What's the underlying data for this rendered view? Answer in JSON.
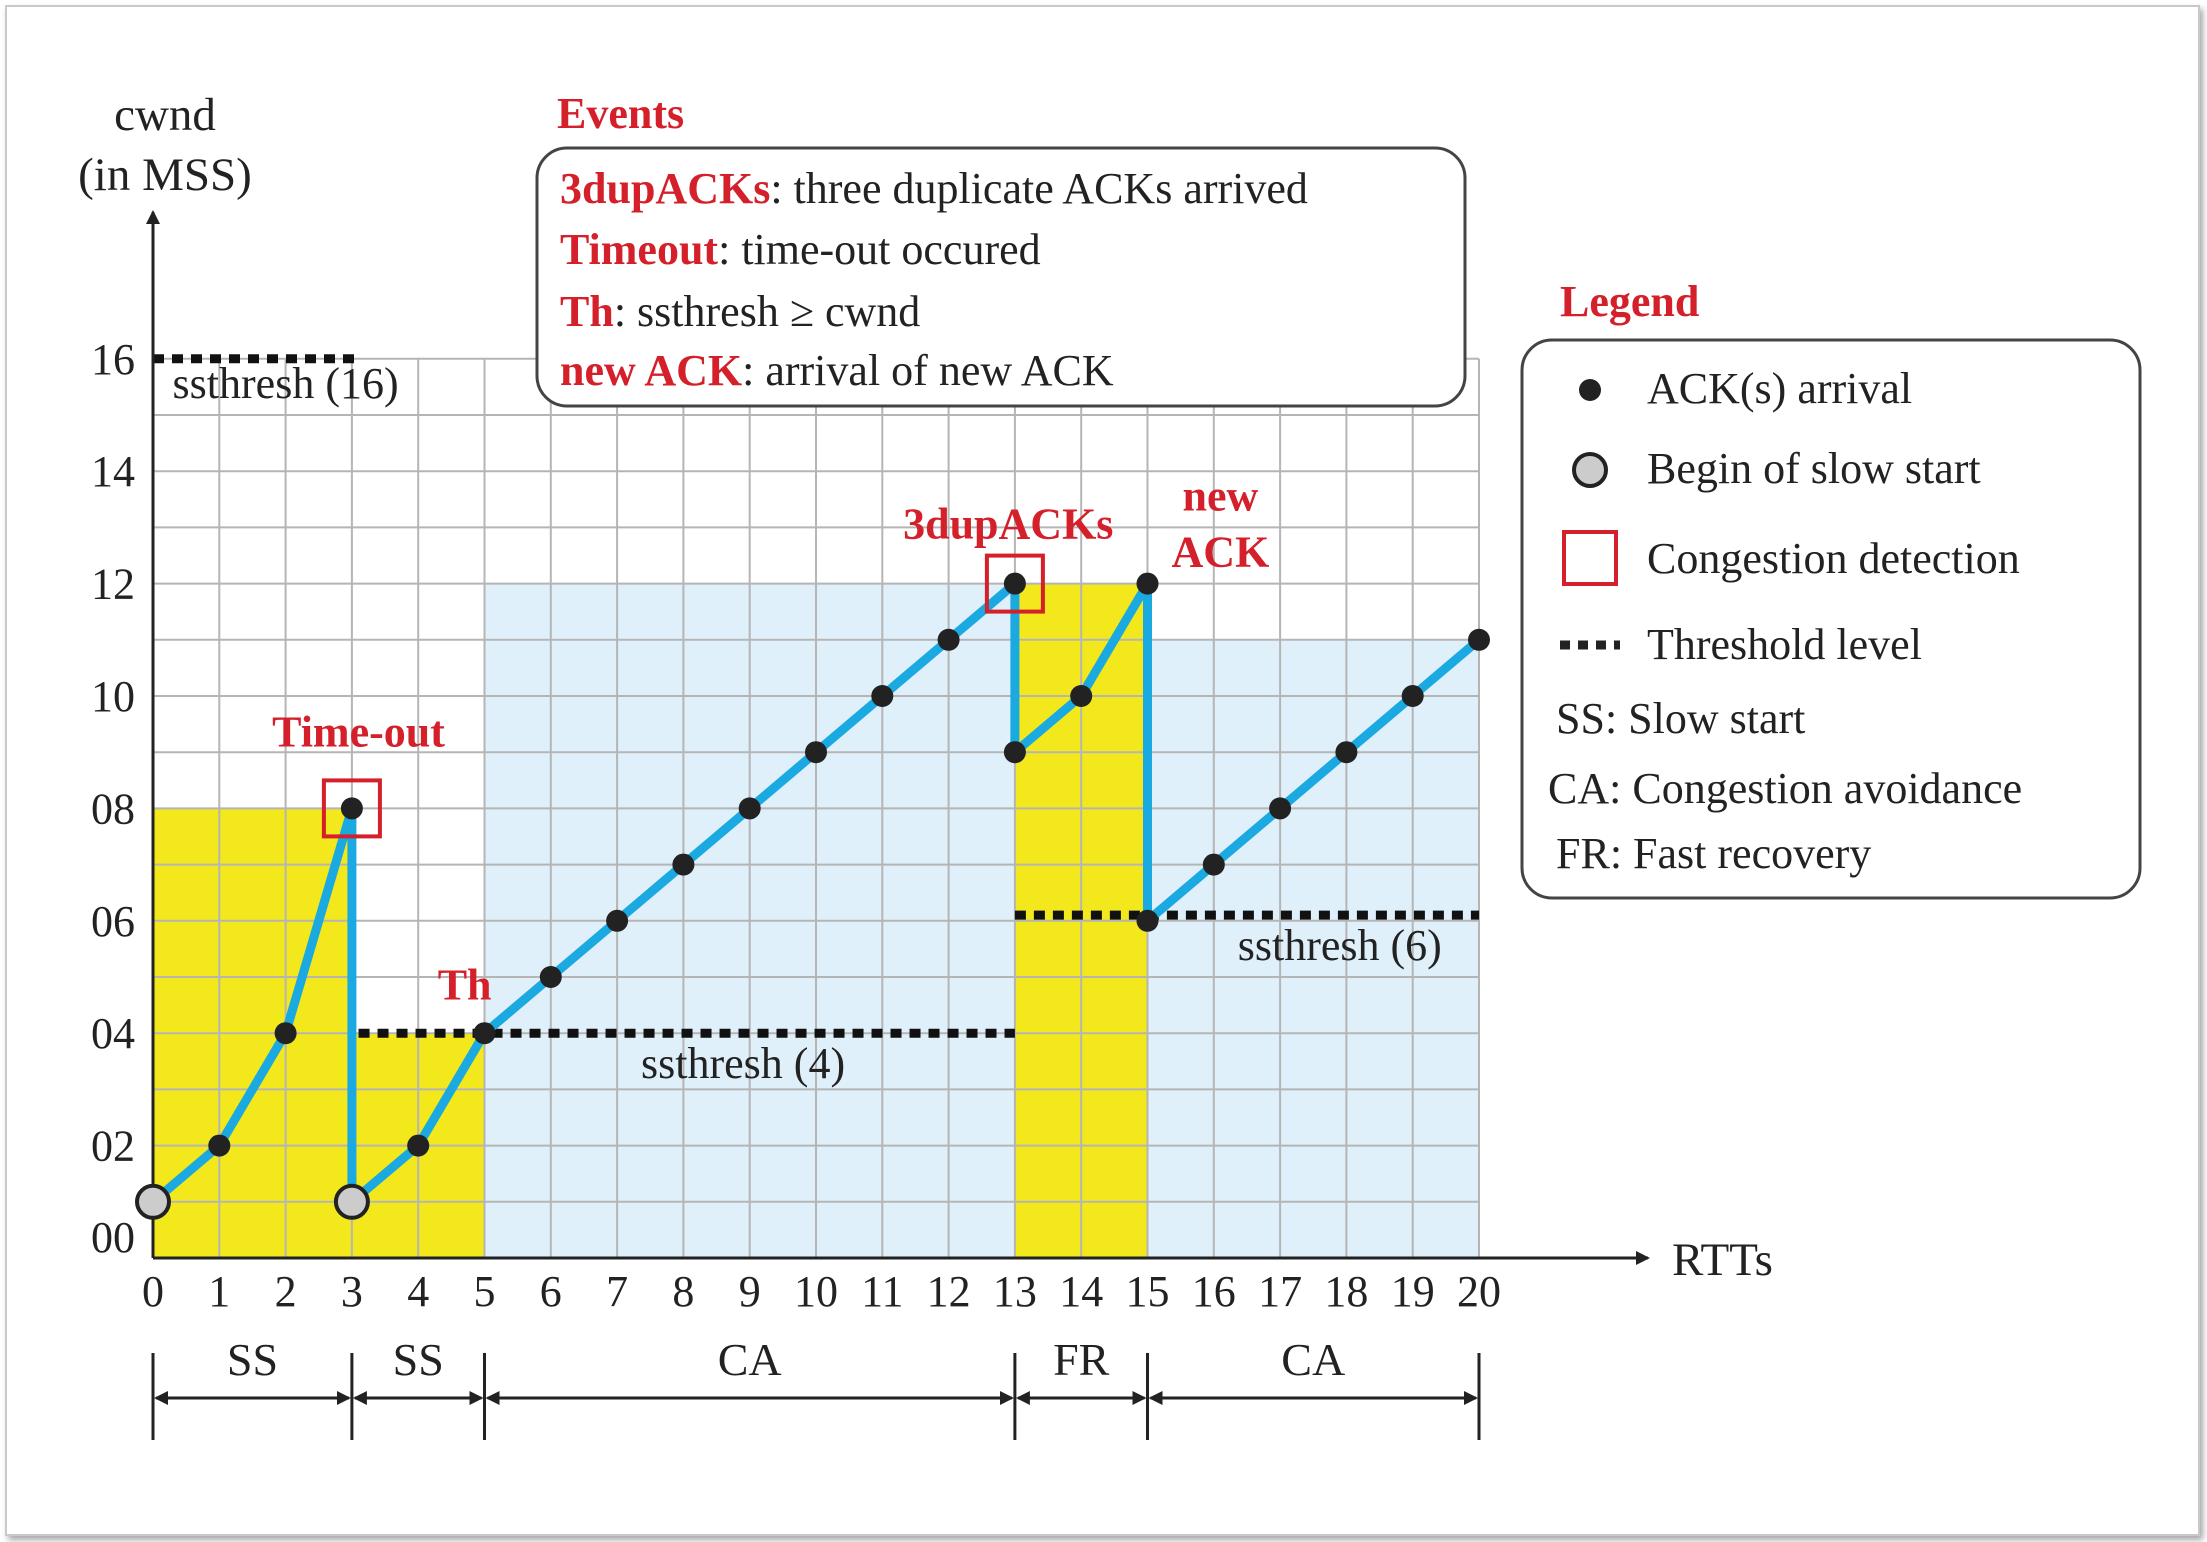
{
  "chart_data": {
    "type": "line",
    "ylabel_line1": "cwnd",
    "ylabel_line2": "(in MSS)",
    "xlabel": "RTTs",
    "xlim": [
      0,
      20
    ],
    "ylim": [
      0,
      16
    ],
    "x_ticks": [
      "0",
      "1",
      "2",
      "3",
      "4",
      "5",
      "6",
      "7",
      "8",
      "9",
      "10",
      "11",
      "12",
      "13",
      "14",
      "15",
      "16",
      "17",
      "18",
      "19",
      "20"
    ],
    "y_ticks": [
      {
        "value": 0,
        "label": "00"
      },
      {
        "value": 2,
        "label": "02"
      },
      {
        "value": 4,
        "label": "04"
      },
      {
        "value": 6,
        "label": "06"
      },
      {
        "value": 8,
        "label": "08"
      },
      {
        "value": 10,
        "label": "10"
      },
      {
        "value": 12,
        "label": "12"
      },
      {
        "value": 14,
        "label": "14"
      },
      {
        "value": 16,
        "label": "16"
      }
    ],
    "grid": true,
    "line_color": "#1aa9e0",
    "path": [
      [
        0,
        1
      ],
      [
        1,
        2
      ],
      [
        2,
        4
      ],
      [
        3,
        8
      ],
      [
        3,
        1
      ],
      [
        4,
        2
      ],
      [
        5,
        4
      ],
      [
        6,
        5
      ],
      [
        7,
        6
      ],
      [
        8,
        7
      ],
      [
        9,
        8
      ],
      [
        10,
        9
      ],
      [
        11,
        10
      ],
      [
        12,
        11
      ],
      [
        13,
        12
      ],
      [
        13,
        9
      ],
      [
        14,
        10
      ],
      [
        15,
        12
      ],
      [
        15,
        6
      ],
      [
        16,
        7
      ],
      [
        17,
        8
      ],
      [
        18,
        9
      ],
      [
        19,
        10
      ],
      [
        20,
        11
      ]
    ],
    "ack_points": [
      [
        1,
        2
      ],
      [
        2,
        4
      ],
      [
        3,
        8
      ],
      [
        4,
        2
      ],
      [
        5,
        4
      ],
      [
        6,
        5
      ],
      [
        7,
        6
      ],
      [
        8,
        7
      ],
      [
        9,
        8
      ],
      [
        10,
        9
      ],
      [
        11,
        10
      ],
      [
        12,
        11
      ],
      [
        13,
        12
      ],
      [
        13,
        9
      ],
      [
        14,
        10
      ],
      [
        15,
        12
      ],
      [
        15,
        6
      ],
      [
        16,
        7
      ],
      [
        17,
        8
      ],
      [
        18,
        9
      ],
      [
        19,
        10
      ],
      [
        20,
        11
      ]
    ],
    "slow_start_points": [
      [
        0,
        1
      ],
      [
        3,
        1
      ]
    ],
    "congestion_points": [
      [
        3,
        8
      ],
      [
        13,
        12
      ]
    ],
    "regions": [
      {
        "x0": 0,
        "x1": 3,
        "y": 8,
        "color": "#f2e81c"
      },
      {
        "x0": 3,
        "x1": 5,
        "y": 4,
        "color": "#f2e81c"
      },
      {
        "x0": 5,
        "x1": 13,
        "y": 12,
        "color": "#dff0fa"
      },
      {
        "x0": 13,
        "x1": 15,
        "y": 12,
        "color": "#f2e81c"
      },
      {
        "x0": 15,
        "x1": 20,
        "y": 11,
        "color": "#dff0fa"
      }
    ],
    "thresholds": [
      {
        "x0": 0,
        "x1": 3.1,
        "y": 16,
        "label": "ssthresh (16)",
        "label_x": 2,
        "label_y": 15.3
      },
      {
        "x0": 3.1,
        "x1": 13,
        "y": 4,
        "label": "ssthresh (4)",
        "label_x": 8.9,
        "label_y": 3.2
      },
      {
        "x0": 13,
        "x1": 20,
        "y": 6.1,
        "label": "ssthresh (6)",
        "label_x": 17.9,
        "label_y": 5.3
      }
    ],
    "annotations": [
      {
        "text": "Time-out",
        "x": 3.1,
        "y": 9.1
      },
      {
        "text": "Th",
        "x": 4.7,
        "y": 4.6
      },
      {
        "text": "3dupACKs",
        "x": 12.9,
        "y": 12.8
      },
      {
        "text": "new",
        "x": 16.1,
        "y": 13.3
      },
      {
        "text": "ACK",
        "x": 16.1,
        "y": 12.3
      }
    ],
    "phases": [
      {
        "label": "SS",
        "from": 0,
        "to": 3
      },
      {
        "label": "SS",
        "from": 3,
        "to": 5
      },
      {
        "label": "CA",
        "from": 5,
        "to": 13
      },
      {
        "label": "FR",
        "from": 13,
        "to": 15
      },
      {
        "label": "CA",
        "from": 15,
        "to": 20
      }
    ],
    "events": {
      "title": "Events",
      "items": [
        {
          "key": "3dupACKs",
          "desc": ": three duplicate ACKs arrived"
        },
        {
          "key": "Timeout",
          "desc": ": time-out occured"
        },
        {
          "key": "Th",
          "desc": ": ssthresh ≥  cwnd"
        },
        {
          "key": "new ACK",
          "desc": ": arrival of new ACK"
        }
      ]
    },
    "legend": {
      "title": "Legend",
      "items": [
        {
          "symbol": "dot",
          "text": "ACK(s) arrival"
        },
        {
          "symbol": "gray-dot",
          "text": "Begin of slow start"
        },
        {
          "symbol": "red-square",
          "text": "Congestion detection"
        },
        {
          "symbol": "dotted-line",
          "text": "Threshold level"
        },
        {
          "symbol": "none",
          "text": "SS:  Slow start"
        },
        {
          "symbol": "none",
          "text": "CA: Congestion avoidance"
        },
        {
          "symbol": "none",
          "text": "FR:  Fast recovery"
        }
      ]
    }
  }
}
